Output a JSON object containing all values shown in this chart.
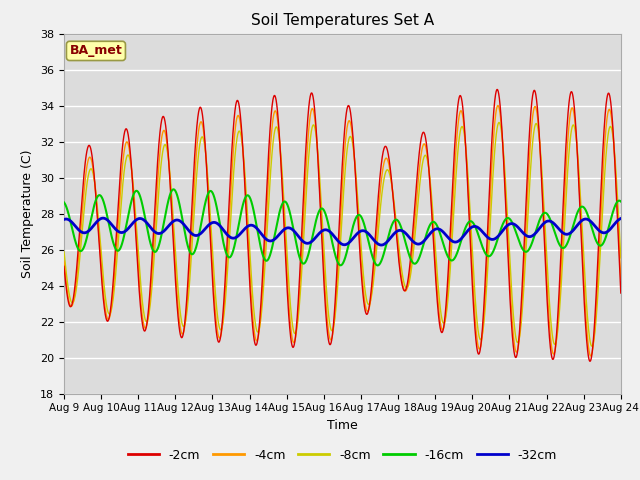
{
  "title": "Soil Temperatures Set A",
  "xlabel": "Time",
  "ylabel": "Soil Temperature (C)",
  "xlim": [
    0,
    15
  ],
  "ylim": [
    18,
    38
  ],
  "yticks": [
    18,
    20,
    22,
    24,
    26,
    28,
    30,
    32,
    34,
    36,
    38
  ],
  "xtick_labels": [
    "Aug 9",
    "Aug 10",
    "Aug 11",
    "Aug 12",
    "Aug 13",
    "Aug 14",
    "Aug 15",
    "Aug 16",
    "Aug 17",
    "Aug 18",
    "Aug 19",
    "Aug 20",
    "Aug 21",
    "Aug 22",
    "Aug 23",
    "Aug 24"
  ],
  "colors": {
    "-2cm": "#dd0000",
    "-4cm": "#ff9900",
    "-8cm": "#cccc00",
    "-16cm": "#00cc00",
    "-32cm": "#0000cc"
  },
  "label_box": "BA_met",
  "label_box_bg": "#ffffaa",
  "label_box_edge": "#999944",
  "label_box_text": "#880000",
  "background_color": "#dcdcdc",
  "grid_color": "#ffffff",
  "fig_bg": "#f0f0f0"
}
